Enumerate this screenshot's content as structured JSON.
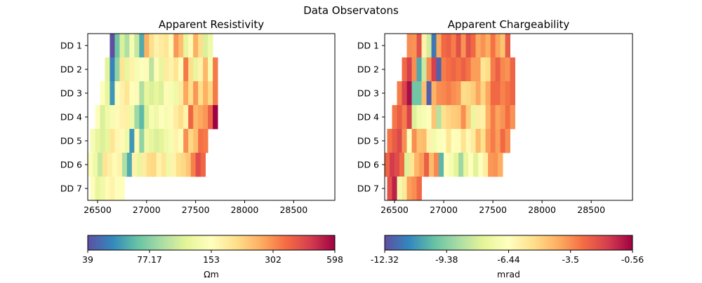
{
  "figure": {
    "suptitle": "Data Observatons"
  },
  "chart_data": [
    {
      "type": "heatmap",
      "title": "Apparent Resistivity",
      "xlabel": "",
      "ylabel": "",
      "xlim": [
        26400,
        28920
      ],
      "x_ticks": [
        "26500",
        "27000",
        "27500",
        "28000",
        "28500"
      ],
      "y_categories": [
        "DD 1",
        "DD 2",
        "DD 3",
        "DD 4",
        "DD 5",
        "DD 6",
        "DD 7"
      ],
      "cell_width": 50,
      "colorscale": "Spectral_r (log)",
      "colorbar": {
        "label": "Ωm",
        "min": 39,
        "max": 598,
        "tick_labels": [
          "39",
          "77.17",
          "153",
          "302",
          "598"
        ],
        "scale": "log"
      },
      "rows": [
        {
          "label": "DD 1",
          "x0": 26625,
          "values": [
            39,
            70,
            110,
            90,
            140,
            100,
            60,
            260,
            200,
            170,
            180,
            190,
            160,
            290,
            240,
            120,
            160,
            260,
            200,
            110,
            130
          ]
        },
        {
          "label": "DD 2",
          "x0": 26575,
          "values": [
            115,
            50,
            80,
            190,
            120,
            170,
            140,
            150,
            160,
            95,
            160,
            120,
            180,
            170,
            190,
            150,
            330,
            200,
            120,
            170,
            250,
            140,
            330
          ]
        },
        {
          "label": "DD 3",
          "x0": 26525,
          "values": [
            150,
            120,
            55,
            150,
            170,
            190,
            150,
            160,
            90,
            120,
            110,
            120,
            110,
            160,
            140,
            130,
            180,
            270,
            200,
            290,
            200,
            260,
            210,
            330
          ]
        },
        {
          "label": "DD 4",
          "x0": 26475,
          "values": [
            150,
            110,
            130,
            140,
            160,
            170,
            175,
            130,
            85,
            65,
            110,
            140,
            130,
            150,
            140,
            160,
            180,
            200,
            170,
            360,
            250,
            270,
            290,
            370,
            598
          ]
        },
        {
          "label": "DD 5",
          "x0": 26425,
          "values": [
            140,
            120,
            110,
            120,
            190,
            165,
            160,
            130,
            55,
            160,
            80,
            130,
            120,
            110,
            115,
            130,
            140,
            170,
            150,
            300,
            210,
            240,
            340,
            330
          ]
        },
        {
          "label": "DD 6",
          "x0": 26400,
          "values": [
            150,
            130,
            100,
            190,
            175,
            160,
            170,
            90,
            60,
            170,
            120,
            180,
            205,
            210,
            170,
            190,
            130,
            170,
            200,
            210,
            230,
            320,
            420,
            360
          ]
        },
        {
          "label": "DD 7",
          "x0": 26425,
          "values": [
            150,
            120,
            130,
            160,
            170,
            150,
            150
          ]
        }
      ]
    },
    {
      "type": "heatmap",
      "title": "Apparent Chargeability",
      "xlabel": "",
      "ylabel": "",
      "xlim": [
        26400,
        28920
      ],
      "x_ticks": [
        "26500",
        "27000",
        "27500",
        "28000",
        "28500"
      ],
      "y_categories": [
        "DD 1",
        "DD 2",
        "DD 3",
        "DD 4",
        "DD 5",
        "DD 6",
        "DD 7"
      ],
      "cell_width": 50,
      "colorscale": "Spectral_r",
      "colorbar": {
        "label": "mrad",
        "min": -12.32,
        "max": -0.56,
        "tick_labels": [
          "-12.32",
          "-9.38",
          "-6.44",
          "-3.5",
          "-0.56"
        ],
        "scale": "linear"
      },
      "rows": [
        {
          "label": "DD 1",
          "x0": 26625,
          "values": [
            -3.5,
            -3.6,
            -2.2,
            -6.0,
            -8.0,
            -11.5,
            -4.0,
            -2.8,
            -2.6,
            -3.2,
            -2.2,
            -3.6,
            -2.2,
            -2.8,
            -4.0,
            -3.6,
            -4.1,
            -3.0,
            -3.9,
            -4.6,
            -2.5
          ]
        },
        {
          "label": "DD 2",
          "x0": 26575,
          "values": [
            -2.8,
            -1.8,
            -3.5,
            -10.5,
            -8.2,
            -3.5,
            -1.8,
            -11.9,
            -3.2,
            -2.9,
            -2.7,
            -3.0,
            -2.6,
            -3.0,
            -3.8,
            -3.8,
            -5.5,
            -5.2,
            -3.2,
            -2.6,
            -3.4,
            -3.6,
            -2.7
          ]
        },
        {
          "label": "DD 3",
          "x0": 26525,
          "values": [
            -3.2,
            -1.9,
            -0.8,
            -9.8,
            -9.8,
            -4.5,
            -12.0,
            -4.2,
            -3.5,
            -3.4,
            -3.2,
            -3.5,
            -3.7,
            -5.2,
            -5.1,
            -4.8,
            -4.0,
            -5.0,
            -4.0,
            -2.8,
            -2.8,
            -3.3,
            -3.0,
            -2.7
          ]
        },
        {
          "label": "DD 4",
          "x0": 26475,
          "values": [
            -3.1,
            -2.5,
            -3.2,
            -1.8,
            -7.8,
            -7.0,
            -6.8,
            -6.5,
            -4.6,
            -8.6,
            -5.3,
            -5.0,
            -4.8,
            -4.7,
            -3.5,
            -4.8,
            -7.4,
            -5.8,
            -5.9,
            -4.2,
            -3.2,
            -3.9,
            -3.6,
            -2.9,
            -3.6
          ]
        },
        {
          "label": "DD 5",
          "x0": 26425,
          "values": [
            -3.0,
            -2.5,
            -2.0,
            -3.5,
            -6.5,
            -3.5,
            -4.5,
            -4.4,
            -6.0,
            -7.0,
            -6.6,
            -6.5,
            -5.5,
            -6.6,
            -6.3,
            -5.4,
            -6.2,
            -5.7,
            -4.4,
            -5.3,
            -3.8,
            -3.2,
            -3.8,
            -2.8,
            -3.5
          ]
        },
        {
          "label": "DD 6",
          "x0": 26400,
          "values": [
            -2.7,
            -1.7,
            -2.1,
            -2.8,
            -7.8,
            -5.5,
            -4.3,
            -3.8,
            -2.6,
            -4.4,
            -3.4,
            -10.2,
            -6.4,
            -6.8,
            -7.6,
            -9.0,
            -7.4,
            -6.5,
            -7.7,
            -6.6,
            -5.8,
            -3.7,
            -3.6,
            -4.1
          ]
        },
        {
          "label": "DD 7",
          "x0": 26425,
          "values": [
            -2.2,
            -1.2,
            -7.0,
            -5.6,
            -3.8,
            -3.5,
            -2.8
          ]
        }
      ]
    }
  ]
}
